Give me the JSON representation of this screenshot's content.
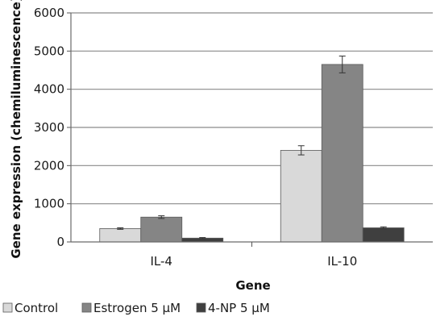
{
  "chart_data": {
    "type": "bar",
    "title": "",
    "xlabel": "Gene",
    "ylabel": "Gene expression (chemiluminescence)",
    "categories": [
      "IL-4",
      "IL-10"
    ],
    "ylim": [
      0,
      6000
    ],
    "yticks": [
      0,
      1000,
      2000,
      3000,
      4000,
      5000,
      6000
    ],
    "grid": true,
    "legend_position": "bottom",
    "series": [
      {
        "name": "Control",
        "values": [
          350,
          2400
        ],
        "errors": [
          20,
          120
        ],
        "color": "#d9d9d9"
      },
      {
        "name": "Estrogen 5 µM",
        "values": [
          650,
          4650
        ],
        "errors": [
          35,
          220
        ],
        "color": "#858585"
      },
      {
        "name": "4-NP 5 µM",
        "values": [
          100,
          370
        ],
        "errors": [
          15,
          25
        ],
        "color": "#3f3f3f"
      }
    ]
  }
}
